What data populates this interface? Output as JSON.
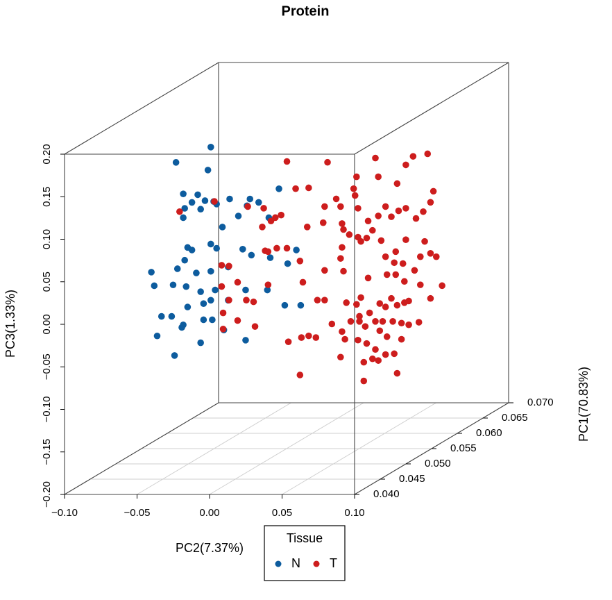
{
  "chart_data": {
    "type": "scatter3d",
    "title": "Protein",
    "xlabel": "PC2(7.37%)",
    "ylabel": "PC1(70.83%)",
    "zlabel": "PC3(1.33%)",
    "legend_title": "Tissue",
    "xlim": [
      -0.1,
      0.1
    ],
    "ylim": [
      0.04,
      0.07
    ],
    "zlim": [
      -0.2,
      0.2
    ],
    "xticks": [
      {
        "value": -0.1,
        "label": "−0.10"
      },
      {
        "value": -0.05,
        "label": "−0.05"
      },
      {
        "value": 0,
        "label": "0.00"
      },
      {
        "value": 0.05,
        "label": "0.05"
      },
      {
        "value": 0.1,
        "label": "0.10"
      }
    ],
    "yticks": [
      {
        "value": 0.04,
        "label": "0.040"
      },
      {
        "value": 0.045,
        "label": "0.045"
      },
      {
        "value": 0.05,
        "label": "0.050"
      },
      {
        "value": 0.055,
        "label": "0.055"
      },
      {
        "value": 0.06,
        "label": "0.060"
      },
      {
        "value": 0.065,
        "label": "0.065"
      },
      {
        "value": 0.07,
        "label": "0.070"
      }
    ],
    "zticks": [
      {
        "value": -0.2,
        "label": "−0.20"
      },
      {
        "value": -0.15,
        "label": "−0.15"
      },
      {
        "value": -0.1,
        "label": "−0.10"
      },
      {
        "value": -0.05,
        "label": "−0.05"
      },
      {
        "value": 0,
        "label": "0.00"
      },
      {
        "value": 0.05,
        "label": "0.05"
      },
      {
        "value": 0.1,
        "label": "0.10"
      },
      {
        "value": 0.15,
        "label": "0.15"
      },
      {
        "value": 0.2,
        "label": "0.20"
      }
    ],
    "grid": true,
    "series": [
      {
        "name": "N",
        "color": "#0d5c9e",
        "x": [
          -0.031,
          -0.055,
          -0.033,
          -0.05,
          -0.04,
          -0.044,
          -0.035,
          -0.029,
          -0.049,
          -0.038,
          -0.027,
          -0.018,
          0.002,
          -0.006,
          -0.05,
          -0.023,
          -0.012,
          -0.004,
          0.016,
          0.009,
          -0.047,
          -0.044,
          -0.031,
          -0.027,
          -0.009,
          -0.003,
          0.01,
          0.022,
          0.028,
          -0.072,
          -0.054,
          -0.049,
          -0.041,
          -0.031,
          -0.019,
          -0.07,
          -0.057,
          -0.048,
          -0.038,
          -0.028,
          -0.036,
          -0.031,
          -0.019,
          -0.007,
          0.008,
          0.02,
          0.031,
          -0.047,
          -0.065,
          -0.058,
          -0.05,
          -0.036,
          -0.03,
          -0.068,
          -0.051,
          -0.038,
          -0.007,
          -0.056,
          -0.022
        ],
        "y": [
          0.049,
          0.049,
          0.049,
          0.049,
          0.049,
          0.049,
          0.049,
          0.049,
          0.049,
          0.049,
          0.049,
          0.049,
          0.049,
          0.049,
          0.049,
          0.049,
          0.049,
          0.049,
          0.049,
          0.049,
          0.049,
          0.049,
          0.049,
          0.049,
          0.049,
          0.049,
          0.049,
          0.049,
          0.049,
          0.049,
          0.049,
          0.049,
          0.049,
          0.049,
          0.049,
          0.049,
          0.049,
          0.049,
          0.049,
          0.049,
          0.049,
          0.049,
          0.049,
          0.049,
          0.049,
          0.049,
          0.049,
          0.049,
          0.049,
          0.049,
          0.049,
          0.049,
          0.049,
          0.049,
          0.049,
          0.049,
          0.049,
          0.049,
          0.049
        ],
        "z": [
          0.176,
          0.158,
          0.149,
          0.121,
          0.12,
          0.111,
          0.113,
          0.112,
          0.104,
          0.103,
          0.109,
          0.115,
          0.111,
          0.107,
          0.093,
          0.082,
          0.095,
          0.115,
          0.127,
          0.093,
          0.058,
          0.055,
          0.062,
          0.057,
          0.056,
          0.049,
          0.046,
          0.039,
          0.055,
          0.029,
          0.033,
          0.043,
          0.028,
          0.03,
          0.035,
          0.013,
          0.014,
          0.012,
          0.006,
          0.008,
          -0.008,
          -0.004,
          -0.004,
          0.008,
          0.008,
          -0.01,
          -0.01,
          -0.012,
          -0.023,
          -0.023,
          -0.033,
          -0.027,
          -0.027,
          -0.046,
          -0.036,
          -0.054,
          -0.051,
          -0.069,
          -0.039
        ]
      },
      {
        "name": "T",
        "color": "#cd1d1d",
        "x": [
          -0.095,
          -0.071,
          -0.048,
          -0.066,
          -0.061,
          -0.066,
          -0.065,
          -0.065,
          -0.061,
          -0.055,
          -0.049,
          -0.044,
          -0.043,
          -0.055,
          -0.036,
          -0.034,
          -0.028,
          -0.021,
          -0.034,
          -0.038,
          -0.032,
          -0.029,
          -0.025,
          -0.037,
          -0.021,
          -0.015,
          -0.006,
          0.007,
          0.005,
          -0.007,
          0.004,
          -0.012,
          -0.01,
          0,
          0.005,
          0.017,
          0.016,
          0.013,
          0.025,
          0.027,
          0.026,
          0.018,
          0.022,
          0.017,
          0.016,
          0.018,
          0.005,
          -0.001,
          -0.006,
          -0.011,
          -0.02,
          0.01,
          0.017,
          0.019,
          0.016,
          -0.012,
          0.02,
          0.027,
          0.029,
          0.023,
          0.029,
          0.033,
          0.028,
          0.034,
          0.032,
          0.032,
          0.038,
          0.04,
          0.042,
          0.047,
          0.053,
          0.055,
          0.058,
          0.048,
          0.043,
          0.045,
          0.04,
          0.036,
          0.043,
          0.047,
          0.051,
          0.055,
          0.06,
          0.063,
          0.07,
          0.063,
          0.058,
          0.052,
          0.028,
          0.03,
          0.034,
          0.038,
          0.044,
          0.042,
          0.047,
          0.051,
          0.056,
          0.061,
          0.068,
          0.073,
          0.078,
          0.08,
          0.076,
          0.066,
          0.061,
          0.055,
          0.042,
          0.04,
          0.028,
          0.035,
          0.047,
          0.054,
          0.061,
          0.071,
          0.078,
          0.082,
          0.054,
          0.06,
          0.071,
          0.086,
          0.078,
          0.048,
          0.035,
          0.03,
          0.053,
          0.059,
          0.067,
          0.074
        ],
        "y": [
          0.061,
          0.061,
          0.061,
          0.061,
          0.061,
          0.061,
          0.061,
          0.061,
          0.061,
          0.061,
          0.061,
          0.061,
          0.061,
          0.061,
          0.061,
          0.061,
          0.061,
          0.061,
          0.061,
          0.061,
          0.061,
          0.061,
          0.061,
          0.061,
          0.061,
          0.061,
          0.061,
          0.061,
          0.061,
          0.061,
          0.061,
          0.061,
          0.061,
          0.061,
          0.061,
          0.061,
          0.061,
          0.061,
          0.061,
          0.061,
          0.061,
          0.061,
          0.061,
          0.061,
          0.061,
          0.061,
          0.061,
          0.061,
          0.061,
          0.061,
          0.061,
          0.061,
          0.061,
          0.061,
          0.061,
          0.061,
          0.061,
          0.061,
          0.061,
          0.061,
          0.061,
          0.061,
          0.061,
          0.061,
          0.061,
          0.061,
          0.061,
          0.061,
          0.061,
          0.061,
          0.061,
          0.061,
          0.061,
          0.061,
          0.061,
          0.061,
          0.061,
          0.061,
          0.061,
          0.061,
          0.061,
          0.061,
          0.061,
          0.061,
          0.061,
          0.061,
          0.061,
          0.061,
          0.061,
          0.061,
          0.061,
          0.061,
          0.061,
          0.061,
          0.061,
          0.061,
          0.061,
          0.061,
          0.061,
          0.061,
          0.061,
          0.061,
          0.061,
          0.061,
          0.061,
          0.061,
          0.061,
          0.061,
          0.061,
          0.061,
          0.061,
          0.061,
          0.061,
          0.061,
          0.061,
          0.061,
          0.061,
          0.061,
          0.061,
          0.061,
          0.061,
          0.061,
          0.061,
          0.061,
          0.061,
          0.061,
          0.061,
          0.061
        ],
        "z": [
          0.057,
          0.069,
          0.063,
          -0.006,
          -0.007,
          -0.031,
          -0.062,
          -0.081,
          -0.047,
          -0.071,
          -0.047,
          -0.049,
          -0.078,
          -0.026,
          0.011,
          0.01,
          0.014,
          0.014,
          -0.029,
          0.039,
          0.046,
          0.05,
          0.053,
          0.061,
          0.116,
          0.084,
          0.085,
          0.115,
          0.063,
          0.039,
          0.044,
          -0.001,
          -0.026,
          -0.047,
          -0.047,
          0.043,
          0.063,
          0.072,
          0.084,
          0.098,
          0.076,
          0.036,
          0.03,
          0.015,
          0.002,
          -0.013,
          -0.012,
          -0.091,
          -0.089,
          -0.091,
          -0.096,
          -0.075,
          -0.084,
          -0.093,
          -0.114,
          -0.135,
          -0.05,
          -0.052,
          -0.066,
          -0.072,
          -0.072,
          -0.078,
          -0.094,
          -0.098,
          -0.12,
          -0.142,
          -0.116,
          -0.105,
          -0.118,
          -0.111,
          -0.11,
          -0.133,
          -0.093,
          -0.09,
          -0.083,
          -0.072,
          -0.072,
          -0.062,
          -0.051,
          -0.055,
          -0.045,
          -0.053,
          -0.05,
          -0.048,
          -0.073,
          -0.076,
          -0.074,
          -0.072,
          0.027,
          0.022,
          0.026,
          0.035,
          0.023,
          0.052,
          0.063,
          0.051,
          0.058,
          0.061,
          0.049,
          0.057,
          0.068,
          0.081,
          0.125,
          0.122,
          0.112,
          0.09,
          0.098,
          0.12,
          0.061,
          0.046,
          0.004,
          0.01,
          0.024,
          0.004,
          0.008,
          0.004,
          -0.017,
          -0.025,
          -0.029,
          -0.03,
          -0.045,
          -0.017,
          -0.021,
          -0.044,
          -0.003,
          -0.004,
          -0.012,
          0.022
        ]
      }
    ]
  }
}
